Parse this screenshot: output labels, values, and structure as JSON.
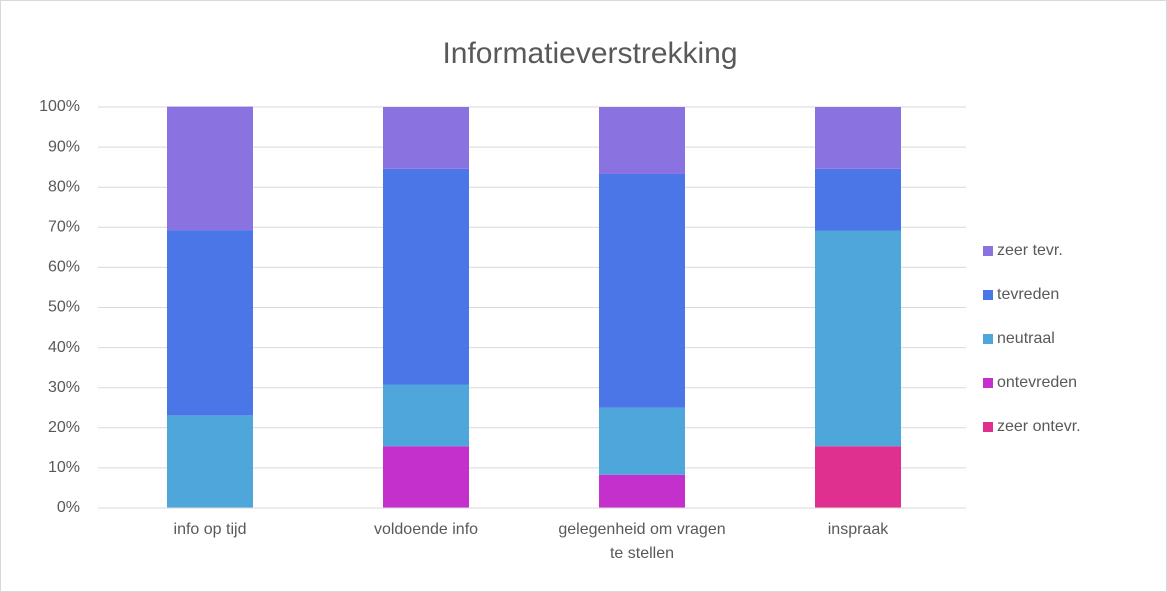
{
  "chart_data": {
    "type": "stacked_bar_100",
    "title": "Informatieverstrekking",
    "categories": [
      "info op tijd",
      "voldoende info",
      "gelegenheid om vragen te stellen",
      "inspraak"
    ],
    "series": [
      {
        "name": "zeer ontevr.",
        "color": "#e0308f",
        "values": [
          0,
          0,
          0,
          15.4
        ]
      },
      {
        "name": "ontevreden",
        "color": "#c430cc",
        "values": [
          0,
          15.4,
          8.3,
          0
        ]
      },
      {
        "name": "neutraal",
        "color": "#4fa6db",
        "values": [
          23.1,
          15.4,
          16.7,
          53.8
        ]
      },
      {
        "name": "tevreden",
        "color": "#4a76e8",
        "values": [
          46.2,
          53.8,
          58.3,
          15.4
        ]
      },
      {
        "name": "zeer tevr.",
        "color": "#8a72e0",
        "values": [
          30.8,
          15.4,
          16.7,
          15.4
        ]
      }
    ],
    "ylim": [
      0,
      100
    ],
    "yticks": [
      {
        "value": 0,
        "label": "0%"
      },
      {
        "value": 10,
        "label": "10%"
      },
      {
        "value": 20,
        "label": "20%"
      },
      {
        "value": 30,
        "label": "30%"
      },
      {
        "value": 40,
        "label": "40%"
      },
      {
        "value": 50,
        "label": "50%"
      },
      {
        "value": 60,
        "label": "60%"
      },
      {
        "value": 70,
        "label": "70%"
      },
      {
        "value": 80,
        "label": "80%"
      },
      {
        "value": 90,
        "label": "90%"
      },
      {
        "value": 100,
        "label": "100%"
      }
    ],
    "grid": true,
    "legend": "right"
  }
}
